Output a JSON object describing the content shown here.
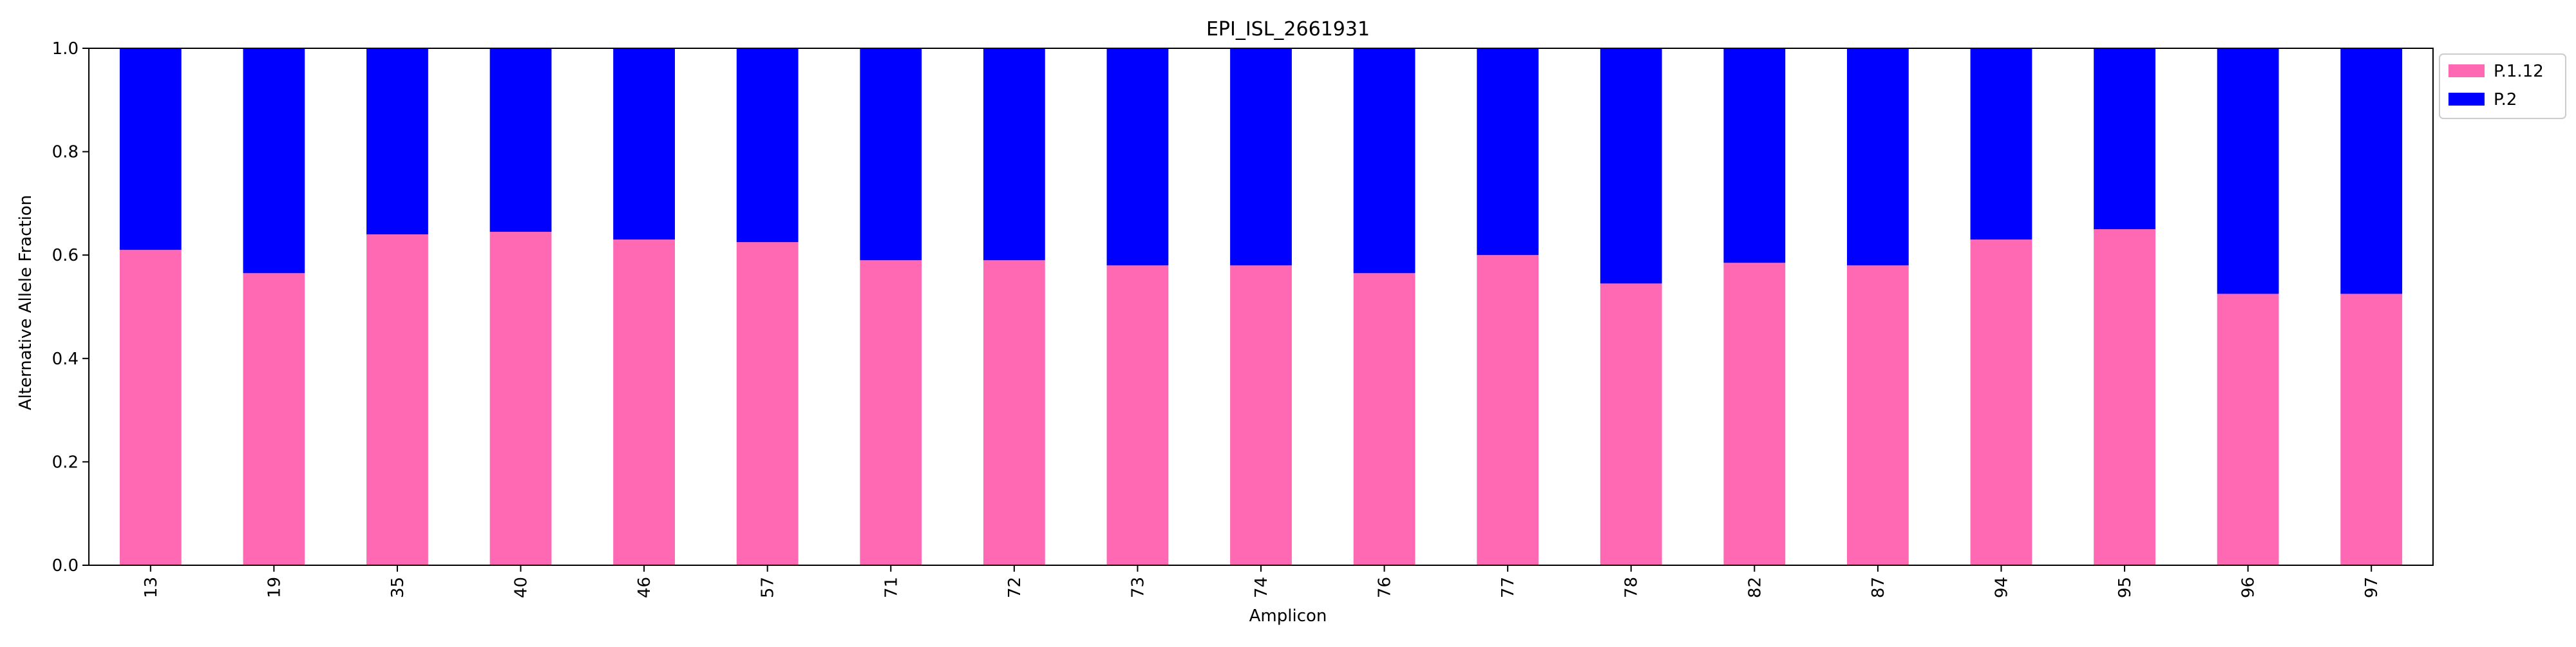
{
  "colors": {
    "p112": "#ff69b4",
    "p2": "#0000ff",
    "axis": "#000000",
    "background": "#ffffff"
  },
  "chart_data": {
    "type": "bar",
    "stacked": true,
    "title": "EPI_ISL_2661931",
    "xlabel": "Amplicon",
    "ylabel": "Alternative Allele Fraction",
    "ylim": [
      0,
      1.0
    ],
    "yticks": [
      "0.0",
      "0.2",
      "0.4",
      "0.6",
      "0.8",
      "1.0"
    ],
    "grid": false,
    "legend_position": "outside-top-right",
    "categories": [
      "13",
      "19",
      "35",
      "40",
      "46",
      "57",
      "71",
      "72",
      "73",
      "74",
      "76",
      "77",
      "78",
      "82",
      "87",
      "94",
      "95",
      "96",
      "97"
    ],
    "series": [
      {
        "name": "P.1.12",
        "color": "#ff69b4",
        "values": [
          0.61,
          0.565,
          0.64,
          0.645,
          0.63,
          0.625,
          0.59,
          0.59,
          0.58,
          0.58,
          0.565,
          0.6,
          0.545,
          0.585,
          0.58,
          0.63,
          0.65,
          0.525,
          0.525
        ]
      },
      {
        "name": "P.2",
        "color": "#0000ff",
        "values": [
          0.39,
          0.435,
          0.36,
          0.355,
          0.37,
          0.375,
          0.41,
          0.41,
          0.42,
          0.42,
          0.435,
          0.4,
          0.455,
          0.415,
          0.42,
          0.37,
          0.35,
          0.475,
          0.475
        ]
      }
    ]
  }
}
